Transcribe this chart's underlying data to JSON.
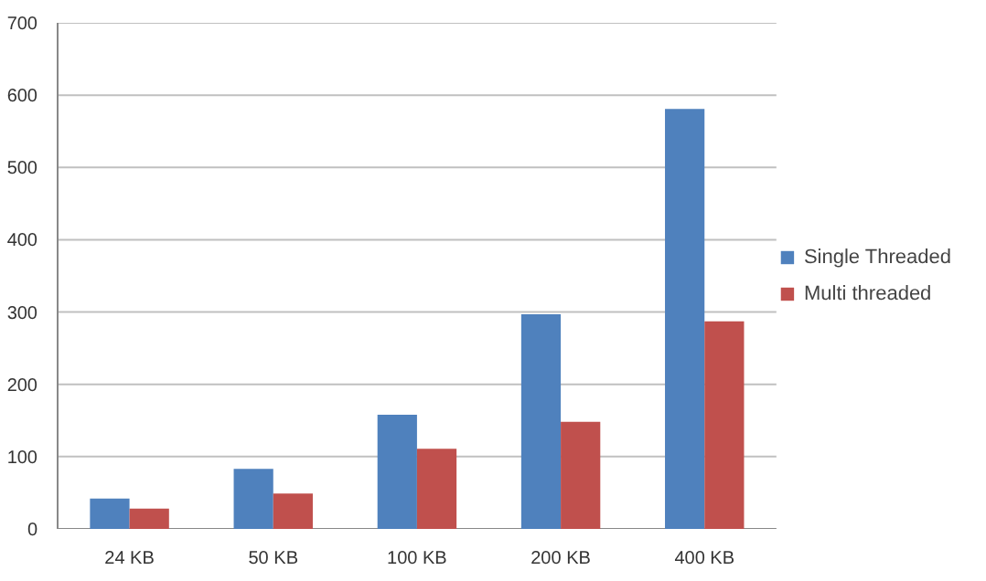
{
  "chart_data": {
    "type": "bar",
    "categories": [
      "24 KB",
      "50 KB",
      "100 KB",
      "200 KB",
      "400 KB"
    ],
    "series": [
      {
        "name": "Single Threaded",
        "color": "#4f81bd",
        "values": [
          42,
          83,
          158,
          297,
          581
        ]
      },
      {
        "name": "Multi threaded",
        "color": "#c0504d",
        "values": [
          28,
          49,
          111,
          148,
          287
        ]
      }
    ],
    "ylim": [
      0,
      700
    ],
    "yticks": [
      0,
      100,
      200,
      300,
      400,
      500,
      600,
      700
    ],
    "grid": "y",
    "legend": "right"
  }
}
